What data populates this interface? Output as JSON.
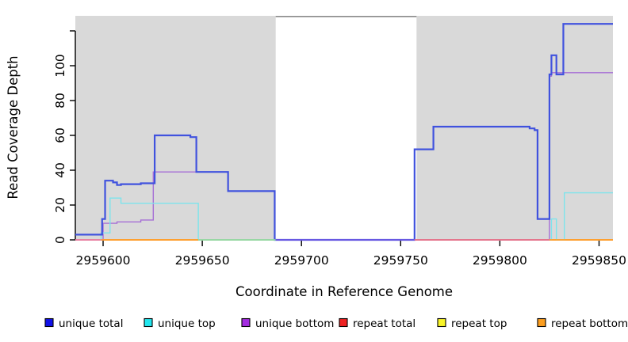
{
  "chart_data": {
    "type": "line",
    "subtype": "step-coverage-plot",
    "title": "",
    "xlabel": "Coordinate in Reference Genome",
    "ylabel": "Read Coverage Depth",
    "x_range": [
      2959586,
      2959857
    ],
    "y_range": [
      0,
      128
    ],
    "grid": false,
    "legend_position": "bottom",
    "x_ticks": [
      2959600,
      2959650,
      2959700,
      2959750,
      2959800,
      2959850
    ],
    "y_ticks": [
      {
        "v": 0,
        "label": "0"
      },
      {
        "v": 20,
        "label": "20"
      },
      {
        "v": 40,
        "label": "40"
      },
      {
        "v": 60,
        "label": "60"
      },
      {
        "v": 80,
        "label": "80"
      },
      {
        "v": 100,
        "label": "100"
      },
      {
        "v": 120,
        "label": ""
      }
    ],
    "background_regions": [
      {
        "x0": 2959586,
        "x1": 2959687,
        "color": "#D9D9D9"
      },
      {
        "x0": 2959758,
        "x1": 2959857,
        "color": "#D9D9D9"
      }
    ],
    "gap_top_border": {
      "x0": 2959687,
      "x1": 2959758,
      "color": "#8A8A8A"
    },
    "series": [
      {
        "name": "unique total",
        "color": "#4052DE",
        "legend_color": "#1111E8",
        "width": 2.2,
        "steps": [
          [
            2959586,
            3
          ],
          [
            2959599.5,
            12
          ],
          [
            2959601,
            34
          ],
          [
            2959605,
            33
          ],
          [
            2959607,
            31.5
          ],
          [
            2959609,
            32
          ],
          [
            2959619,
            32.5
          ],
          [
            2959626,
            60
          ],
          [
            2959644,
            59
          ],
          [
            2959647,
            39
          ],
          [
            2959663,
            28
          ],
          [
            2959686.5,
            0
          ],
          [
            2959757,
            52
          ],
          [
            2959766.5,
            65
          ],
          [
            2959815,
            64
          ],
          [
            2959817.5,
            63
          ],
          [
            2959819,
            12
          ],
          [
            2959825,
            95
          ],
          [
            2959826,
            106
          ],
          [
            2959828.5,
            95
          ],
          [
            2959832,
            124
          ],
          [
            2959857,
            124
          ]
        ]
      },
      {
        "name": "unique top",
        "color": "#7DE4EC",
        "legend_color": "#22E6EE",
        "width": 1.4,
        "steps": [
          [
            2959586,
            0
          ],
          [
            2959599,
            4
          ],
          [
            2959603.5,
            24
          ],
          [
            2959609,
            21
          ],
          [
            2959648,
            0
          ],
          [
            2959826,
            12
          ],
          [
            2959828.5,
            0
          ],
          [
            2959832.5,
            27
          ],
          [
            2959857,
            27
          ]
        ]
      },
      {
        "name": "unique bottom",
        "color": "#A66FD6",
        "legend_color": "#A32BE0",
        "width": 1.4,
        "steps": [
          [
            2959586,
            0
          ],
          [
            2959600,
            9.5
          ],
          [
            2959607,
            10.3
          ],
          [
            2959619,
            11.4
          ],
          [
            2959625.3,
            39
          ],
          [
            2959663,
            28
          ],
          [
            2959686.5,
            0
          ],
          [
            2959825,
            94
          ],
          [
            2959826,
            96
          ],
          [
            2959857,
            96
          ]
        ]
      },
      {
        "name": "repeat total",
        "color": "#E06666",
        "legend_color": "#EE2222",
        "width": 1.4,
        "steps": [
          [
            2959586,
            0
          ],
          [
            2959857,
            0
          ]
        ]
      },
      {
        "name": "repeat top",
        "color": "#E6DE55",
        "legend_color": "#F8F428",
        "width": 1.4,
        "steps": [
          [
            2959586,
            0
          ],
          [
            2959857,
            0
          ]
        ]
      },
      {
        "name": "repeat bottom",
        "color": "#FF9E33",
        "legend_color": "#FC9E20",
        "width": 1.4,
        "steps": [
          [
            2959586,
            0
          ],
          [
            2959857,
            0
          ]
        ]
      }
    ],
    "zero_line_segments": [
      {
        "x0": 2959586,
        "x1": 2959599,
        "color": "#F27BA0"
      },
      {
        "x0": 2959599,
        "x1": 2959648,
        "color": "#FF9E2C"
      },
      {
        "x0": 2959648,
        "x1": 2959687,
        "color": "#93D9A4"
      },
      {
        "x0": 2959687,
        "x1": 2959757,
        "color": "#6E59E3"
      },
      {
        "x0": 2959757,
        "x1": 2959825,
        "color": "#EE6D86"
      },
      {
        "x0": 2959825,
        "x1": 2959857,
        "color": "#FF9E2C"
      }
    ]
  }
}
